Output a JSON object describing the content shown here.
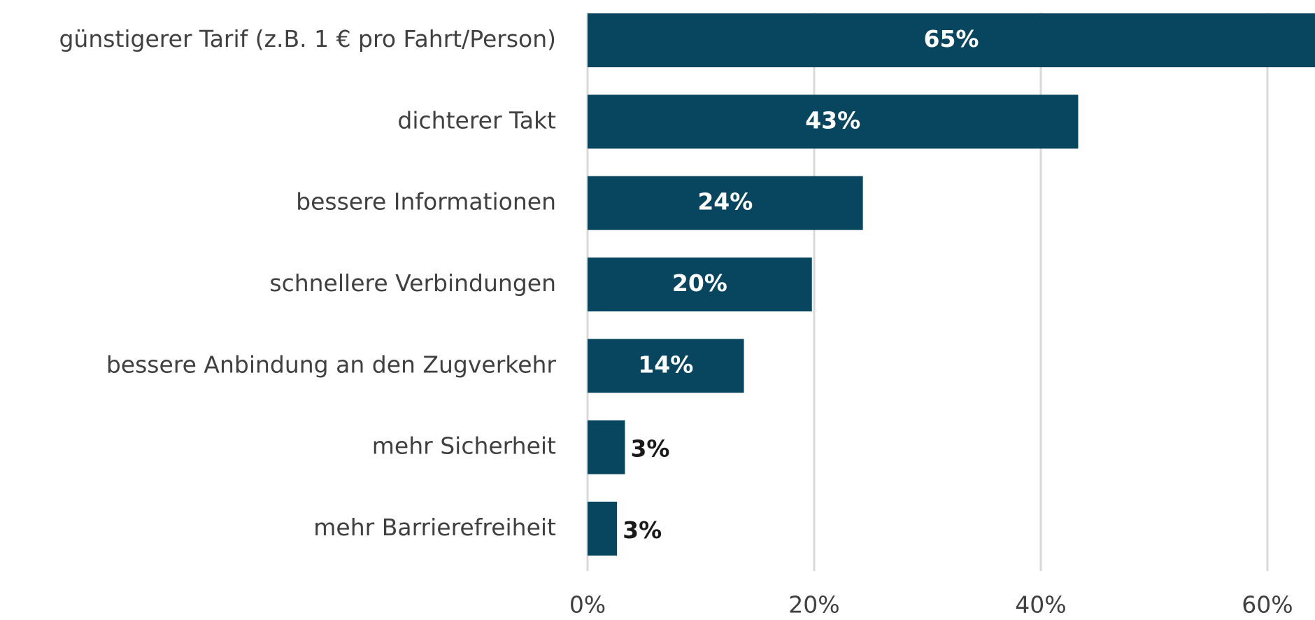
{
  "chart_data": {
    "type": "barh",
    "categories": [
      "günstigerer Tarif (z.B. 1 € pro Fahrt/Person)",
      "dichterer Takt",
      "bessere Informationen",
      "schnellere Verbindungen",
      "bessere Anbindung an den Zugverkehr",
      "mehr Sicherheit",
      "mehr Barrierefreiheit"
    ],
    "values": [
      65,
      43.3,
      24.3,
      19.8,
      13.8,
      3.3,
      2.6
    ],
    "value_labels": [
      "65%",
      "43%",
      "24%",
      "20%",
      "14%",
      "3%",
      "3%"
    ],
    "color": "#08465f",
    "xlim": [
      0,
      64.2
    ],
    "xticks": [
      {
        "value": 0,
        "label": "0%"
      },
      {
        "value": 20,
        "label": "20%"
      },
      {
        "value": 40,
        "label": "40%"
      },
      {
        "value": 60,
        "label": "60%"
      }
    ],
    "grid": true
  }
}
